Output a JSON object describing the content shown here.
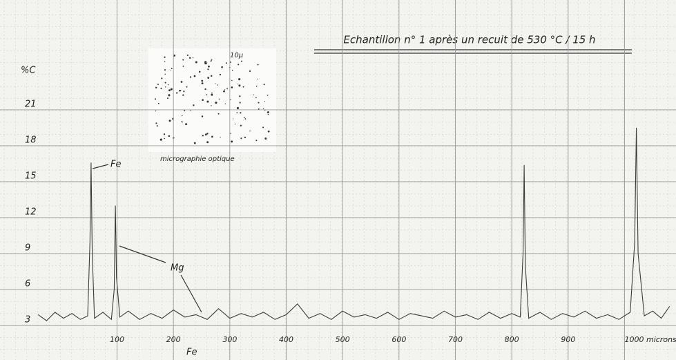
{
  "chart_data": {
    "type": "line",
    "title": "Echantillon n° 1 après un recuit de 530 °C / 15 h",
    "y_label": "%C",
    "x": [
      -40,
      -25,
      -10,
      5,
      20,
      35,
      48,
      52,
      54,
      56,
      60,
      75,
      90,
      95,
      97,
      99,
      105,
      120,
      140,
      160,
      180,
      200,
      220,
      240,
      260,
      280,
      300,
      320,
      340,
      360,
      380,
      400,
      420,
      440,
      460,
      480,
      500,
      520,
      540,
      560,
      580,
      600,
      620,
      640,
      660,
      680,
      700,
      720,
      740,
      760,
      780,
      800,
      815,
      820,
      822,
      824,
      830,
      850,
      870,
      890,
      910,
      930,
      950,
      970,
      990,
      1010,
      1018,
      1021,
      1024,
      1035,
      1050,
      1065,
      1080
    ],
    "series": [
      {
        "color": "#3a3a3a",
        "values": [
          3.9,
          3.4,
          4.1,
          3.6,
          4.0,
          3.5,
          3.8,
          10,
          16.6,
          9,
          3.6,
          4.1,
          3.5,
          6,
          13.0,
          7,
          3.7,
          4.2,
          3.5,
          4.0,
          3.6,
          4.3,
          3.7,
          3.9,
          3.5,
          4.4,
          3.6,
          4.0,
          3.7,
          4.1,
          3.5,
          3.9,
          4.8,
          3.6,
          4.0,
          3.5,
          4.2,
          3.7,
          3.9,
          3.6,
          4.1,
          3.5,
          4.0,
          3.8,
          3.6,
          4.2,
          3.7,
          3.9,
          3.5,
          4.1,
          3.6,
          4.0,
          3.7,
          9,
          16.4,
          8,
          3.6,
          4.1,
          3.5,
          4.0,
          3.7,
          4.2,
          3.6,
          3.9,
          3.5,
          4.1,
          10,
          19.5,
          9,
          3.8,
          4.2,
          3.6,
          4.6
        ]
      }
    ],
    "xlim": [
      -50,
      1090
    ],
    "ylim": [
      0.75,
      24.4
    ],
    "xticks": [
      100,
      200,
      300,
      400,
      500,
      600,
      700,
      800,
      900,
      {
        "value": 1000,
        "label": "1000 microns"
      }
    ],
    "yticks": [
      3,
      6,
      9,
      12,
      15,
      18,
      21
    ],
    "grid": true,
    "annotations": [
      "Fe",
      "Mg",
      "micrographie optique",
      "10µ",
      "Fe"
    ]
  }
}
